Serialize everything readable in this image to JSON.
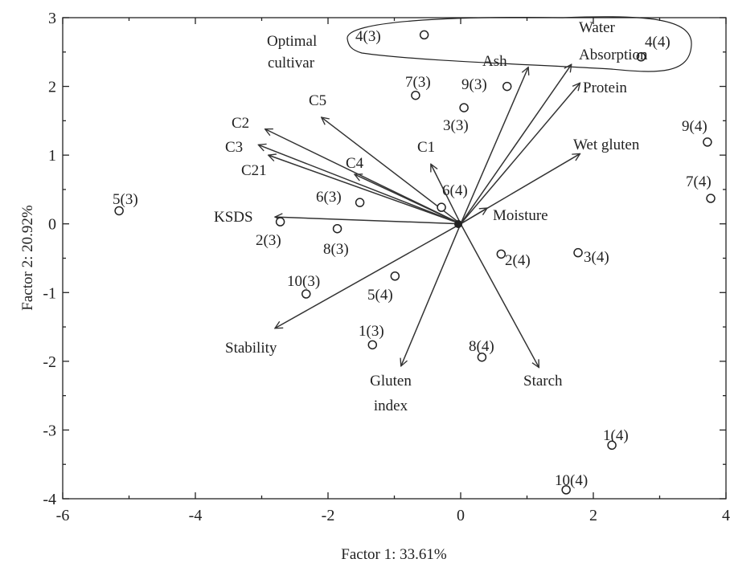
{
  "chart_data": {
    "type": "scatter",
    "subtype": "biplot",
    "title": "",
    "xlabel": "Factor 1: 33.61%",
    "ylabel": "Factor 2: 20.92%",
    "xlim": [
      -6,
      4
    ],
    "ylim": [
      -4,
      3
    ],
    "x_ticks": [
      -6,
      -4,
      -2,
      0,
      2,
      4
    ],
    "y_ticks": [
      -4,
      -3,
      -2,
      -1,
      0,
      1,
      2,
      3
    ],
    "grid": false,
    "points": [
      {
        "label": "4(3)",
        "x": -0.55,
        "y": 2.75
      },
      {
        "label": "4(4)",
        "x": 2.72,
        "y": 2.43
      },
      {
        "label": "7(3)",
        "x": -0.68,
        "y": 1.87
      },
      {
        "label": "9(3)",
        "x": 0.7,
        "y": 2.0
      },
      {
        "label": "3(3)",
        "x": 0.05,
        "y": 1.69
      },
      {
        "label": "9(4)",
        "x": 3.72,
        "y": 1.19
      },
      {
        "label": "7(4)",
        "x": 3.77,
        "y": 0.37
      },
      {
        "label": "5(3)",
        "x": -5.15,
        "y": 0.19
      },
      {
        "label": "6(3)",
        "x": -1.52,
        "y": 0.31
      },
      {
        "label": "6(4)",
        "x": -0.29,
        "y": 0.24
      },
      {
        "label": "2(3)",
        "x": -2.72,
        "y": 0.03
      },
      {
        "label": "8(3)",
        "x": -1.86,
        "y": -0.07
      },
      {
        "label": "2(4)",
        "x": 0.61,
        "y": -0.44
      },
      {
        "label": "3(4)",
        "x": 1.77,
        "y": -0.42
      },
      {
        "label": "10(3)",
        "x": -2.33,
        "y": -1.02
      },
      {
        "label": "5(4)",
        "x": -0.99,
        "y": -0.76
      },
      {
        "label": "1(3)",
        "x": -1.33,
        "y": -1.76
      },
      {
        "label": "8(4)",
        "x": 0.32,
        "y": -1.94
      },
      {
        "label": "1(4)",
        "x": 2.28,
        "y": -3.22
      },
      {
        "label": "10(4)",
        "x": 1.59,
        "y": -3.87
      }
    ],
    "vectors": [
      {
        "label": "Water Absorption",
        "x": 1.67,
        "y": 2.32
      },
      {
        "label": "Ash",
        "x": 1.02,
        "y": 2.28
      },
      {
        "label": "Protein",
        "x": 1.8,
        "y": 2.05
      },
      {
        "label": "Wet gluten",
        "x": 1.8,
        "y": 1.02
      },
      {
        "label": "Moisture",
        "x": 0.4,
        "y": 0.23
      },
      {
        "label": "C1",
        "x": -0.45,
        "y": 0.87
      },
      {
        "label": "C5",
        "x": -2.1,
        "y": 1.55
      },
      {
        "label": "C2",
        "x": -2.95,
        "y": 1.38
      },
      {
        "label": "C3",
        "x": -3.05,
        "y": 1.15
      },
      {
        "label": "C21",
        "x": -2.9,
        "y": 1.0
      },
      {
        "label": "C4",
        "x": -1.6,
        "y": 0.72
      },
      {
        "label": "KSDS",
        "x": -2.8,
        "y": 0.1
      },
      {
        "label": "Stability",
        "x": -2.8,
        "y": -1.52
      },
      {
        "label": "Gluten index",
        "x": -0.9,
        "y": -2.07
      },
      {
        "label": "Starch",
        "x": 1.18,
        "y": -2.09
      }
    ],
    "annotations": [
      {
        "text": "Optimal",
        "group": "optimal-cultivar"
      },
      {
        "text": "cultivar",
        "group": "optimal-cultivar"
      }
    ]
  }
}
